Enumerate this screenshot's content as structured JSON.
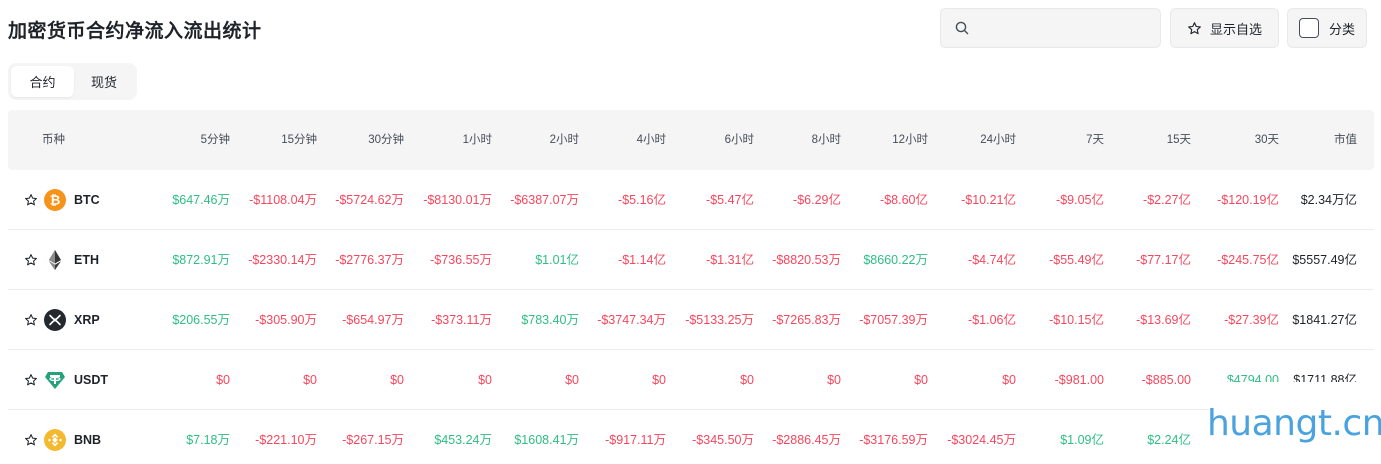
{
  "page": {
    "title": "加密货币合约净流入流出统计"
  },
  "search": {
    "placeholder": "",
    "value": ""
  },
  "toolbar": {
    "watchlist_label": "显示自选",
    "category_label": "分类"
  },
  "tabs": [
    {
      "label": "合约",
      "active": true
    },
    {
      "label": "现货",
      "active": false
    }
  ],
  "table": {
    "headers": [
      "币种",
      "5分钟",
      "15分钟",
      "30分钟",
      "1小时",
      "2小时",
      "4小时",
      "6小时",
      "8小时",
      "12小时",
      "24小时",
      "7天",
      "15天",
      "30天",
      "市值"
    ],
    "rows": [
      {
        "symbol": "BTC",
        "icon": "btc-icon",
        "values": [
          "$647.46万",
          "-$1108.04万",
          "-$5724.62万",
          "-$8130.01万",
          "-$6387.07万",
          "-$5.16亿",
          "-$5.47亿",
          "-$6.29亿",
          "-$8.60亿",
          "-$10.21亿",
          "-$9.05亿",
          "-$2.27亿",
          "-$120.19亿"
        ],
        "market_cap": "$2.34万亿"
      },
      {
        "symbol": "ETH",
        "icon": "eth-icon",
        "values": [
          "$872.91万",
          "-$2330.14万",
          "-$2776.37万",
          "-$736.55万",
          "$1.01亿",
          "-$1.14亿",
          "-$1.31亿",
          "-$8820.53万",
          "$8660.22万",
          "-$4.74亿",
          "-$55.49亿",
          "-$77.17亿",
          "-$245.75亿"
        ],
        "market_cap": "$5557.49亿"
      },
      {
        "symbol": "XRP",
        "icon": "xrp-icon",
        "values": [
          "$206.55万",
          "-$305.90万",
          "-$654.97万",
          "-$373.11万",
          "$783.40万",
          "-$3747.34万",
          "-$5133.25万",
          "-$7265.83万",
          "-$7057.39万",
          "-$1.06亿",
          "-$10.15亿",
          "-$13.69亿",
          "-$27.39亿"
        ],
        "market_cap": "$1841.27亿"
      },
      {
        "symbol": "USDT",
        "icon": "usdt-icon",
        "values": [
          "$0",
          "$0",
          "$0",
          "$0",
          "$0",
          "$0",
          "$0",
          "$0",
          "$0",
          "$0",
          "-$981.00",
          "-$885.00",
          "$4794.00"
        ],
        "market_cap": "$1711.88亿"
      },
      {
        "symbol": "BNB",
        "icon": "bnb-icon",
        "values": [
          "$7.18万",
          "-$221.10万",
          "-$267.15万",
          "$453.24万",
          "$1608.41万",
          "-$917.11万",
          "-$345.50万",
          "-$2886.45万",
          "-$3176.59万",
          "-$3024.45万",
          "$1.09亿",
          "$2.24亿",
          ""
        ],
        "market_cap": ""
      }
    ]
  },
  "colors": {
    "positive": "#2ebd85",
    "negative": "#f6465d",
    "text": "#1e2329",
    "header_bg": "#f5f5f5"
  },
  "watermark": {
    "text": "huangt.cn"
  }
}
